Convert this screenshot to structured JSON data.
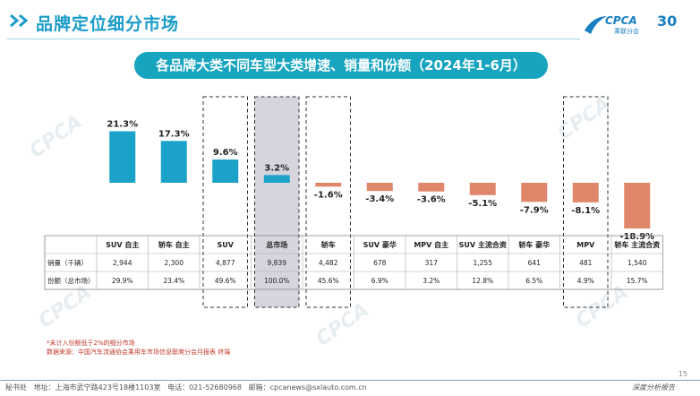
{
  "page": {
    "title": "品牌定位细分市场",
    "banner": "各品牌大类不同车型大类增速、销量和份额（2024年1-6月）",
    "logo": {
      "name": "CPCA",
      "sub": "乘联分会",
      "anniversary": "30"
    },
    "page_number": "15",
    "notes": [
      "*未计入份额低于2%的细分市场",
      "数据来源：中国汽车流通协会乘用车市场信息联席分会月报表 终端"
    ],
    "footer": {
      "secretary": "秘书处",
      "address": "地址：上海市武宁路423号18楼1103室",
      "phone": "电话：021-52680968",
      "email": "邮箱：cpcanews@sxlauto.com.cn",
      "tagline": "深度分析报告"
    }
  },
  "colors": {
    "positive_bar": "#1aa2c8",
    "negative_bar": "#e0866a",
    "highlight_bg": "#d6d4dd",
    "accent": "#1a9cc9"
  },
  "chart_data": {
    "type": "bar",
    "categories": [
      "SUV 自主",
      "轿车 自主",
      "SUV",
      "总市场",
      "轿车",
      "SUV 豪华",
      "MPV 自主",
      "SUV 主流合资",
      "轿车 豪华",
      "MPV",
      "轿车 主流合资"
    ],
    "values": [
      21.3,
      17.3,
      9.6,
      3.2,
      -1.6,
      -3.4,
      -3.6,
      -5.1,
      -7.9,
      -8.1,
      -18.9
    ],
    "value_labels": [
      "21.3%",
      "17.3%",
      "9.6%",
      "3.2%",
      "-1.6%",
      "-3.4%",
      "-3.6%",
      "-5.1%",
      "-7.9%",
      "-8.1%",
      "-18.9%"
    ],
    "dashed_boxes": [
      "SUV",
      "轿车",
      "MPV"
    ],
    "highlighted": "总市场",
    "ylim": [
      -20,
      23
    ],
    "table": {
      "rows": [
        {
          "label": "销量（千辆）",
          "values": [
            "2,944",
            "2,300",
            "4,877",
            "9,839",
            "4,482",
            "678",
            "317",
            "1,255",
            "641",
            "481",
            "1,540"
          ]
        },
        {
          "label": "份额（总市场）",
          "values": [
            "29.9%",
            "23.4%",
            "49.6%",
            "100.0%",
            "45.6%",
            "6.9%",
            "3.2%",
            "12.8%",
            "6.5%",
            "4.9%",
            "15.7%"
          ]
        }
      ]
    }
  }
}
